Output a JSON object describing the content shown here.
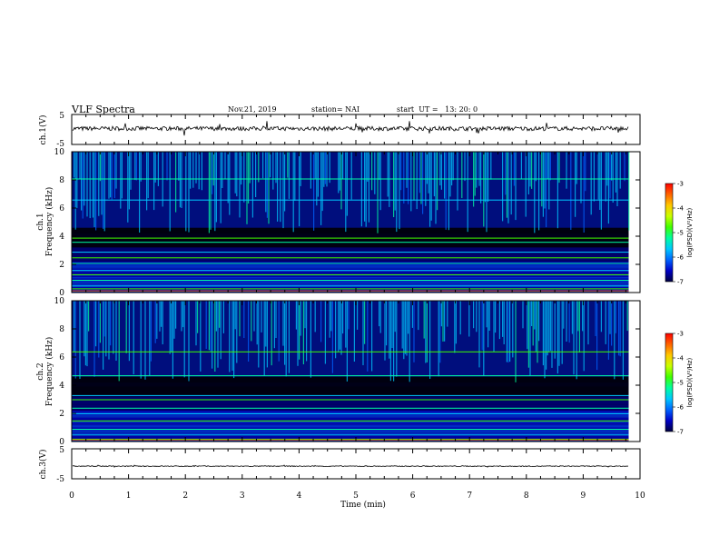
{
  "header": {
    "title": "VLF Spectra",
    "date": "Nov.21, 2019",
    "station": "station= NAI",
    "start": "start  UT =   13: 20: 0"
  },
  "colorbar": {
    "label": "log(PSD)(V²/Hz)",
    "ticks": [
      "-3",
      "-4",
      "-5",
      "-6",
      "-7"
    ],
    "colors": [
      "#000000",
      "#000040",
      "#0000c8",
      "#0064ff",
      "#00c8ff",
      "#00ffa0",
      "#40ff00",
      "#c8ff00",
      "#ffc800",
      "#ff6400",
      "#ff0000",
      "#ffffff"
    ]
  },
  "panels": {
    "ch1_wave": {
      "label": "ch.1(V)",
      "ticks": [
        "5",
        "-5"
      ]
    },
    "ch1_spec": {
      "label": "ch.1",
      "sublabel": "Frequency  (kHz)",
      "ticks": [
        "10",
        "8",
        "6",
        "4",
        "2",
        "0"
      ]
    },
    "ch2_spec": {
      "label": "ch.2",
      "sublabel": "Frequency  (kHz)",
      "ticks": [
        "10",
        "8",
        "6",
        "4",
        "2",
        "0"
      ]
    },
    "ch3_wave": {
      "label": "ch.3(V)",
      "ticks": [
        "5",
        "-5"
      ]
    }
  },
  "xaxis": {
    "label": "Time  (min)",
    "ticks": [
      "0",
      "1",
      "2",
      "3",
      "4",
      "5",
      "6",
      "7",
      "8",
      "9",
      "10"
    ]
  },
  "chart_data": {
    "type": "heatmap",
    "title": "VLF Spectra",
    "xlabel": "Time  (min)",
    "xlim": [
      0,
      10
    ],
    "data_end_min": 9.8,
    "panels": [
      {
        "name": "ch.1(V)",
        "kind": "waveform",
        "ylim": [
          -5,
          5
        ],
        "mean_level": 0.3
      },
      {
        "name": "ch.1",
        "kind": "spectrogram",
        "ylabel": "Frequency  (kHz)",
        "ylim": [
          0,
          10
        ],
        "colorbar_range": [
          -7,
          -3
        ],
        "persistent_lines_khz": [
          0.3,
          0.5,
          0.9,
          1.3,
          1.6,
          2.1,
          2.5,
          2.9,
          3.6,
          3.9,
          6.6,
          8.1
        ]
      },
      {
        "name": "ch.2",
        "kind": "spectrogram",
        "ylabel": "Frequency  (kHz)",
        "ylim": [
          0,
          10
        ],
        "colorbar_range": [
          -7,
          -3
        ],
        "persistent_lines_khz": [
          0.2,
          0.5,
          0.9,
          1.5,
          2.0,
          2.4,
          3.0,
          3.3,
          4.7,
          6.4
        ]
      },
      {
        "name": "ch.3(V)",
        "kind": "waveform",
        "ylim": [
          -5,
          5
        ],
        "mean_level": -0.8
      }
    ]
  }
}
